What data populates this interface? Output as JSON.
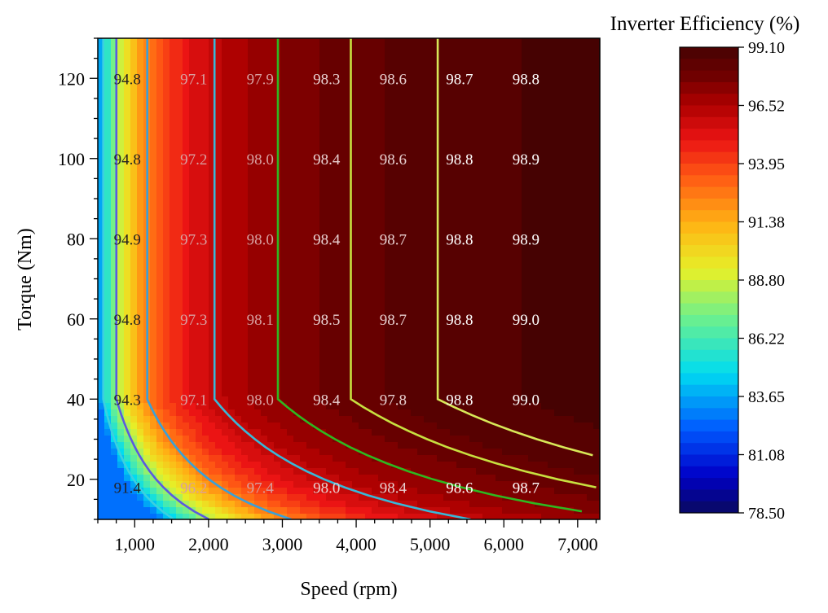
{
  "chart_data": {
    "type": "heatmap",
    "title": "",
    "xlabel": "Speed (rpm)",
    "ylabel": "Torque (Nm)",
    "xlim": [
      500,
      7300
    ],
    "ylim": [
      10,
      130
    ],
    "x_ticks": [
      1000,
      2000,
      3000,
      4000,
      5000,
      6000,
      7000
    ],
    "x_tick_labels": [
      "1,000",
      "2,000",
      "3,000",
      "4,000",
      "5,000",
      "6,000",
      "7,000"
    ],
    "y_ticks": [
      20,
      40,
      60,
      80,
      100,
      120
    ],
    "y_tick_labels": [
      "20",
      "40",
      "60",
      "80",
      "100",
      "120"
    ],
    "colorbar": {
      "title": "Inverter Efficiency (%)",
      "min": 78.5,
      "max": 99.1,
      "tick_labels": [
        "99.10",
        "96.52",
        "93.95",
        "91.38",
        "88.80",
        "86.22",
        "83.65",
        "81.08",
        "78.50"
      ],
      "colormap": "jet"
    },
    "contour_lines": "on",
    "grid": "off",
    "label_speeds": [
      900,
      1800,
      2700,
      3600,
      4500,
      5400,
      6300
    ],
    "label_torques": [
      120,
      100,
      80,
      60,
      40,
      18
    ],
    "values": [
      [
        "94.8",
        "97.1",
        "97.9",
        "98.3",
        "98.6",
        "98.7",
        "98.8"
      ],
      [
        "94.8",
        "97.2",
        "98.0",
        "98.4",
        "98.6",
        "98.8",
        "98.9"
      ],
      [
        "94.9",
        "97.3",
        "98.0",
        "98.4",
        "98.7",
        "98.8",
        "98.9"
      ],
      [
        "94.8",
        "97.3",
        "98.1",
        "98.5",
        "98.7",
        "98.8",
        "99.0"
      ],
      [
        "94.3",
        "97.1",
        "98.0",
        "98.4",
        "97.8",
        "98.8",
        "99.0"
      ],
      [
        "91.4",
        "96.2",
        "97.4",
        "98.0",
        "98.4",
        "98.6",
        "98.7"
      ]
    ]
  }
}
